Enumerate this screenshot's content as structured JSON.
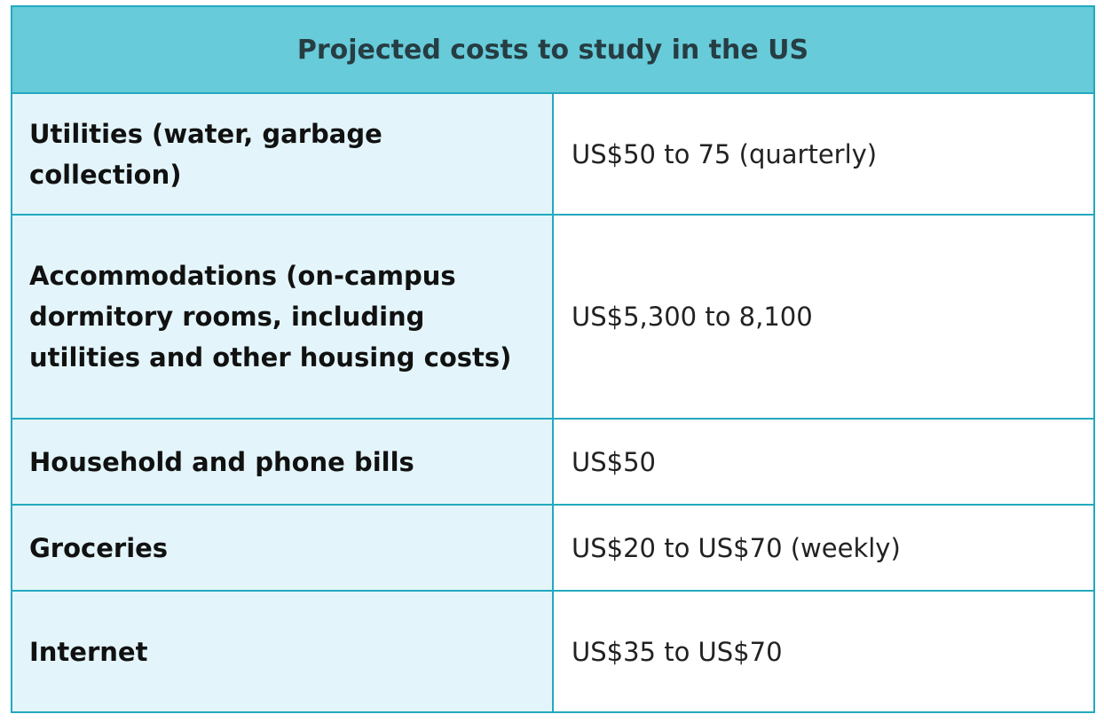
{
  "table": {
    "title": "Projected costs to study in the US",
    "rows": [
      {
        "label": "Utilities (water, garbage collection)",
        "value": "US$50 to 75 (quarterly)"
      },
      {
        "label": "Accommodations (on-campus dormitory rooms, including utilities and other housing costs)",
        "value": "US$5,300 to 8,100"
      },
      {
        "label": "Household and phone bills",
        "value": "US$50"
      },
      {
        "label": "Groceries",
        "value": "US$20 to US$70 (weekly)"
      },
      {
        "label": "Internet",
        "value": "US$35 to US$70"
      }
    ]
  },
  "colors": {
    "header_bg": "#67cbd9",
    "label_bg": "#e3f5fa",
    "border": "#22a9bf",
    "header_text": "#263d43"
  }
}
